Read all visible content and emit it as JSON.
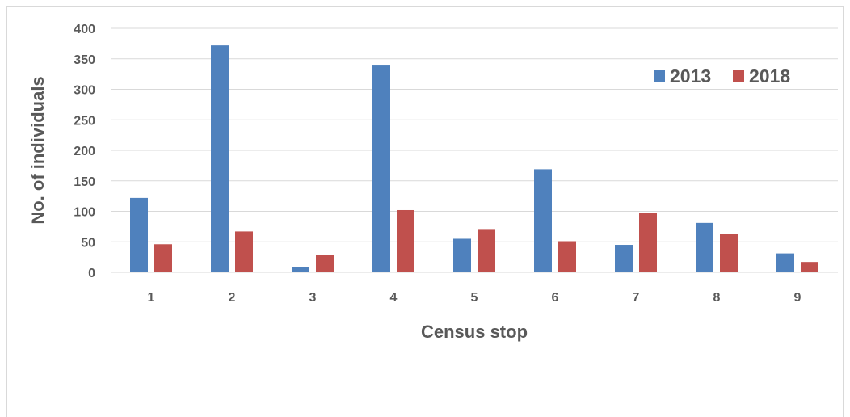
{
  "chart_data": {
    "type": "bar",
    "categories": [
      "1",
      "2",
      "3",
      "4",
      "5",
      "6",
      "7",
      "8",
      "9"
    ],
    "series": [
      {
        "name": "2013",
        "values": [
          122,
          372,
          8,
          339,
          55,
          169,
          45,
          81,
          31
        ],
        "color": "#4f81bd"
      },
      {
        "name": "2018",
        "values": [
          46,
          67,
          29,
          102,
          71,
          51,
          98,
          63,
          17
        ],
        "color": "#c0504d"
      }
    ],
    "title": "",
    "xlabel": "Census stop",
    "ylabel": "No. of individuals",
    "ylim": [
      0,
      400
    ],
    "yticks": [
      0,
      50,
      100,
      150,
      200,
      250,
      300,
      350,
      400
    ],
    "grid": true,
    "legend_position": "top-right"
  }
}
